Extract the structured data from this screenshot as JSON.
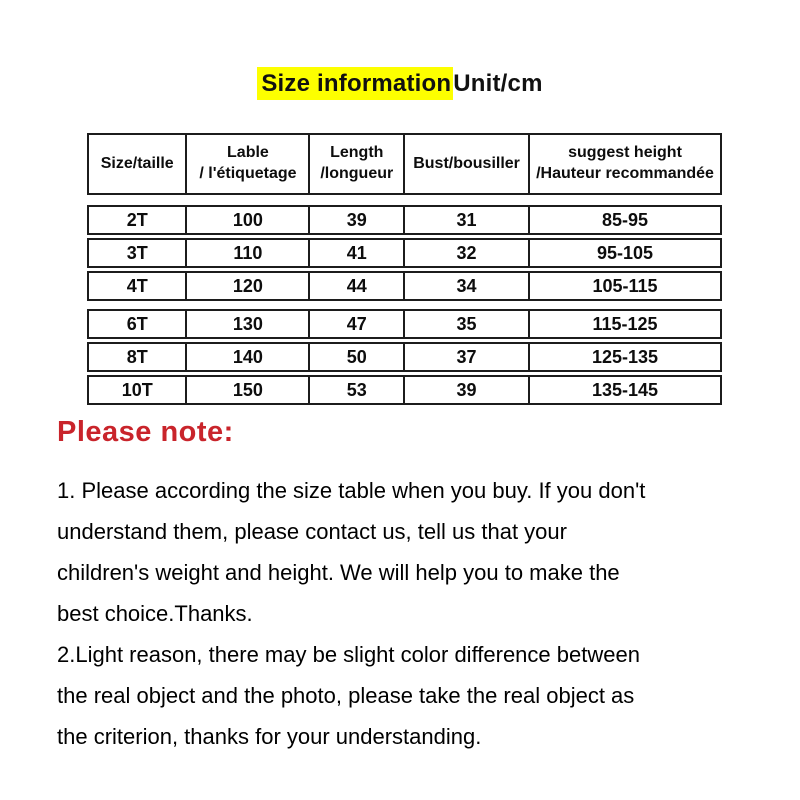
{
  "title": {
    "highlighted": "Size information",
    "suffix": "Unit/cm",
    "highlight_color": "#fdff00"
  },
  "size_table": {
    "headers": [
      "Size/taille",
      "Lable\n/ l'étiquetage",
      "Length\n/longueur",
      "Bust/bousiller",
      "suggest height\n/Hauteur recommandée"
    ],
    "rows": [
      [
        "2T",
        "100",
        "39",
        "31",
        "85-95"
      ],
      [
        "3T",
        "110",
        "41",
        "32",
        "95-105"
      ],
      [
        "4T",
        "120",
        "44",
        "34",
        "105-115"
      ],
      [
        "6T",
        "130",
        "47",
        "35",
        "115-125"
      ],
      [
        "8T",
        "140",
        "50",
        "37",
        "125-135"
      ],
      [
        "10T",
        "150",
        "53",
        "39",
        "135-145"
      ]
    ]
  },
  "note": {
    "heading": "Please note:",
    "heading_color": "#c9242b",
    "lines": [
      "1. Please according the size table when you buy. If you don't",
      "understand them, please contact us, tell us that your",
      "children's weight and height. We will help you to make the",
      "best choice.Thanks.",
      "2.Light reason, there may be slight color difference between",
      "the real object and the photo, please take the real object as",
      "the criterion, thanks for your understanding."
    ]
  }
}
